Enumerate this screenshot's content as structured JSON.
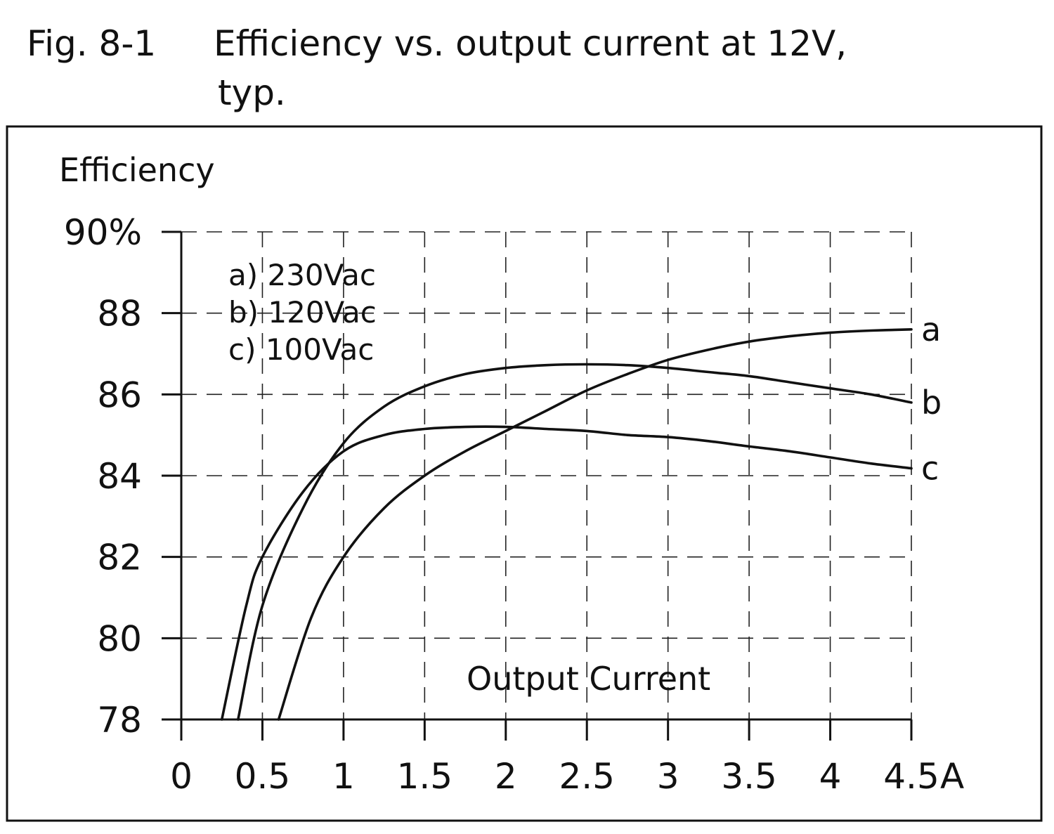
{
  "figure": {
    "number": "Fig. 8-1",
    "title_line1": "Efficiency vs. output current at 12V,",
    "title_line2": "typ."
  },
  "chart_data": {
    "type": "line",
    "title": "Efficiency vs. output current at 12V, typ.",
    "xlabel": "Output Current",
    "x_unit": "A",
    "ylabel": "Efficiency",
    "xlim": [
      0,
      4.5
    ],
    "ylim": [
      78,
      90
    ],
    "x_ticks": [
      0,
      0.5,
      1,
      1.5,
      2,
      2.5,
      3,
      3.5,
      4,
      4.5
    ],
    "x_tick_labels": [
      "0",
      "0.5",
      "1",
      "1.5",
      "2",
      "2.5",
      "3",
      "3.5",
      "4",
      "4.5"
    ],
    "y_ticks": [
      78,
      80,
      82,
      84,
      86,
      88,
      90
    ],
    "y_tick_labels": [
      "78",
      "80",
      "82",
      "84",
      "86",
      "88",
      "90%"
    ],
    "grid": true,
    "legend_position": "top-left",
    "legend": [
      "a) 230Vac",
      "b) 120Vac",
      "c) 100Vac"
    ],
    "series": [
      {
        "name": "a",
        "legend": "a) 230Vac",
        "x": [
          0.6,
          0.8,
          1.0,
          1.25,
          1.5,
          1.75,
          2.0,
          2.25,
          2.5,
          2.75,
          3.0,
          3.25,
          3.5,
          3.75,
          4.0,
          4.25,
          4.5
        ],
        "y": [
          78.0,
          80.5,
          82.0,
          83.2,
          84.0,
          84.6,
          85.1,
          85.6,
          86.1,
          86.5,
          86.85,
          87.1,
          87.3,
          87.43,
          87.52,
          87.57,
          87.6
        ]
      },
      {
        "name": "b",
        "legend": "b) 120Vac",
        "x": [
          0.35,
          0.5,
          0.75,
          1.0,
          1.25,
          1.5,
          1.75,
          2.0,
          2.25,
          2.5,
          2.75,
          3.0,
          3.25,
          3.5,
          3.75,
          4.0,
          4.25,
          4.5
        ],
        "y": [
          78.0,
          80.8,
          83.2,
          84.8,
          85.7,
          86.2,
          86.5,
          86.65,
          86.72,
          86.74,
          86.72,
          86.65,
          86.55,
          86.45,
          86.3,
          86.15,
          86.0,
          85.8
        ]
      },
      {
        "name": "c",
        "legend": "c) 100Vac",
        "x": [
          0.25,
          0.4,
          0.5,
          0.75,
          1.0,
          1.25,
          1.5,
          1.75,
          2.0,
          2.25,
          2.5,
          2.75,
          3.0,
          3.25,
          3.5,
          3.75,
          4.0,
          4.25,
          4.5
        ],
        "y": [
          78.0,
          80.8,
          82.0,
          83.6,
          84.6,
          85.0,
          85.15,
          85.2,
          85.2,
          85.15,
          85.1,
          85.0,
          84.95,
          84.85,
          84.72,
          84.6,
          84.45,
          84.3,
          84.18
        ]
      }
    ]
  }
}
